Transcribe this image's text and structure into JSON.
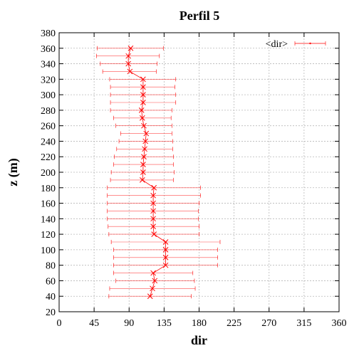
{
  "chart_data": {
    "type": "line",
    "title": "Perfil 5",
    "xlabel": "dir",
    "ylabel": "z (m)",
    "xlim": [
      0,
      360
    ],
    "ylim": [
      20,
      380
    ],
    "xticks": [
      0,
      45,
      90,
      135,
      180,
      225,
      270,
      315,
      360
    ],
    "yticks": [
      20,
      40,
      60,
      80,
      100,
      120,
      140,
      160,
      180,
      200,
      220,
      240,
      260,
      280,
      300,
      320,
      340,
      360,
      380
    ],
    "grid": true,
    "legend": "top-right",
    "color": "#ff0000",
    "series": [
      {
        "name": "<dir>",
        "style": "line with x markers and horizontal error bars",
        "points": [
          {
            "z": 40,
            "dir": 117,
            "low": 64,
            "high": 170
          },
          {
            "z": 50,
            "dir": 120,
            "low": 65,
            "high": 175
          },
          {
            "z": 60,
            "dir": 123,
            "low": 73,
            "high": 174
          },
          {
            "z": 70,
            "dir": 121,
            "low": 70,
            "high": 172
          },
          {
            "z": 80,
            "dir": 137,
            "low": 70,
            "high": 204
          },
          {
            "z": 90,
            "dir": 137,
            "low": 70,
            "high": 204
          },
          {
            "z": 100,
            "dir": 137,
            "low": 70,
            "high": 204
          },
          {
            "z": 110,
            "dir": 137,
            "low": 67,
            "high": 207
          },
          {
            "z": 120,
            "dir": 122,
            "low": 64,
            "high": 180
          },
          {
            "z": 130,
            "dir": 121,
            "low": 63,
            "high": 180
          },
          {
            "z": 140,
            "dir": 121,
            "low": 62,
            "high": 179
          },
          {
            "z": 150,
            "dir": 121,
            "low": 62,
            "high": 179
          },
          {
            "z": 160,
            "dir": 121,
            "low": 62,
            "high": 180
          },
          {
            "z": 170,
            "dir": 121,
            "low": 62,
            "high": 182
          },
          {
            "z": 180,
            "dir": 122,
            "low": 62,
            "high": 182
          },
          {
            "z": 190,
            "dir": 107,
            "low": 66,
            "high": 147
          },
          {
            "z": 200,
            "dir": 108,
            "low": 67,
            "high": 148
          },
          {
            "z": 210,
            "dir": 108,
            "low": 70,
            "high": 147
          },
          {
            "z": 220,
            "dir": 109,
            "low": 71,
            "high": 147
          },
          {
            "z": 230,
            "dir": 110,
            "low": 74,
            "high": 146
          },
          {
            "z": 240,
            "dir": 111,
            "low": 77,
            "high": 146
          },
          {
            "z": 250,
            "dir": 112,
            "low": 79,
            "high": 145
          },
          {
            "z": 260,
            "dir": 109,
            "low": 73,
            "high": 145
          },
          {
            "z": 270,
            "dir": 107,
            "low": 70,
            "high": 144
          },
          {
            "z": 280,
            "dir": 106,
            "low": 66,
            "high": 145
          },
          {
            "z": 290,
            "dir": 108,
            "low": 66,
            "high": 150
          },
          {
            "z": 300,
            "dir": 108,
            "low": 66,
            "high": 150
          },
          {
            "z": 310,
            "dir": 108,
            "low": 66,
            "high": 149
          },
          {
            "z": 320,
            "dir": 108,
            "low": 65,
            "high": 150
          },
          {
            "z": 330,
            "dir": 91,
            "low": 56,
            "high": 125
          },
          {
            "z": 340,
            "dir": 89,
            "low": 53,
            "high": 126
          },
          {
            "z": 350,
            "dir": 89,
            "low": 48,
            "high": 129
          },
          {
            "z": 360,
            "dir": 92,
            "low": 49,
            "high": 134
          }
        ]
      }
    ]
  }
}
